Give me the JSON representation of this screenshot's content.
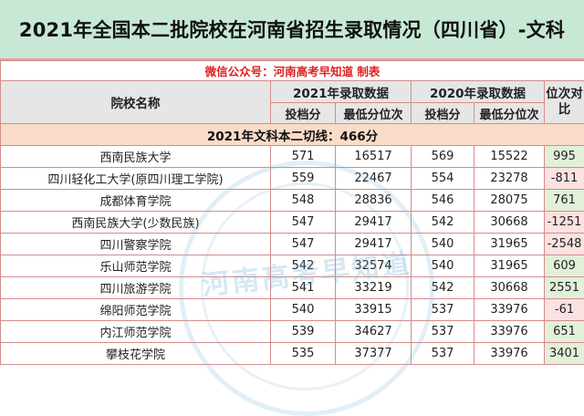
{
  "title": "2021年全国本二批院校在河南省招生录取情况（四川省）-文科",
  "credit": "微信公众号：河南高考早知道 制表",
  "watermark": "河南高考早知道",
  "header": {
    "school": "院校名称",
    "y2021": "2021年录取数据",
    "y2020": "2020年录取数据",
    "rank_diff": "位次对比",
    "score": "投档分",
    "min_rank": "最低分位次"
  },
  "section": "2021年文科本二切线：466分",
  "rows": [
    {
      "name": "西南民族大学",
      "s21": "571",
      "r21": "16517",
      "s20": "569",
      "r20": "15522",
      "diff": "995"
    },
    {
      "name": "四川轻化工大学(原四川理工学院)",
      "s21": "559",
      "r21": "22467",
      "s20": "554",
      "r20": "23278",
      "diff": "-811"
    },
    {
      "name": "成都体育学院",
      "s21": "548",
      "r21": "28836",
      "s20": "546",
      "r20": "28075",
      "diff": "761"
    },
    {
      "name": "西南民族大学(少数民族)",
      "s21": "547",
      "r21": "29417",
      "s20": "542",
      "r20": "30668",
      "diff": "-1251"
    },
    {
      "name": "四川警察学院",
      "s21": "547",
      "r21": "29417",
      "s20": "540",
      "r20": "31965",
      "diff": "-2548"
    },
    {
      "name": "乐山师范学院",
      "s21": "542",
      "r21": "32574",
      "s20": "540",
      "r20": "31965",
      "diff": "609"
    },
    {
      "name": "四川旅游学院",
      "s21": "541",
      "r21": "33219",
      "s20": "542",
      "r20": "30668",
      "diff": "2551"
    },
    {
      "name": "绵阳师范学院",
      "s21": "540",
      "r21": "33915",
      "s20": "537",
      "r20": "33976",
      "diff": "-61"
    },
    {
      "name": "内江师范学院",
      "s21": "539",
      "r21": "34627",
      "s20": "537",
      "r20": "33976",
      "diff": "651"
    },
    {
      "name": "攀枝花学院",
      "s21": "535",
      "r21": "37377",
      "s20": "537",
      "r20": "33976",
      "diff": "3401"
    }
  ]
}
